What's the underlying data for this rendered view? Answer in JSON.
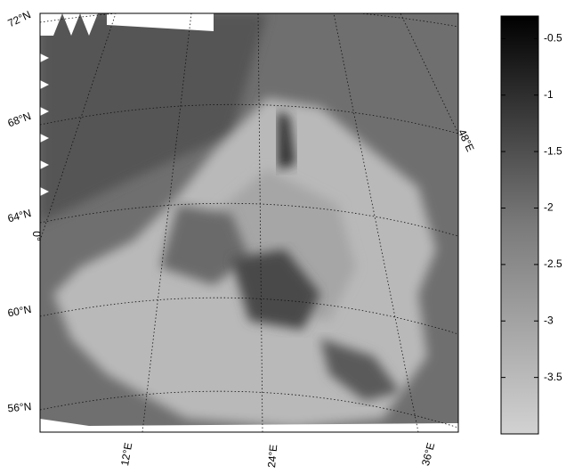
{
  "map": {
    "lat_labels": [
      "72°N",
      "68°N",
      "64°N",
      "60°N",
      "56°N"
    ],
    "lon_labels": [
      "0°",
      "12°E",
      "24°E",
      "36°E",
      "48°E"
    ]
  },
  "colorbar": {
    "lim": [
      -4,
      -0.3
    ],
    "ticks": [
      -0.5,
      -1,
      -1.5,
      -2,
      -2.5,
      -3,
      -3.5
    ]
  }
}
